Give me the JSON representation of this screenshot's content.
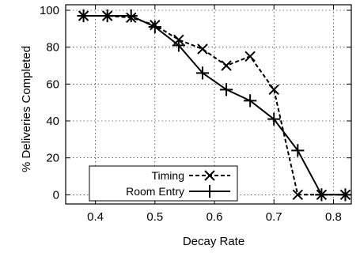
{
  "chart_data": {
    "type": "line",
    "title": "",
    "xlabel": "Decay Rate",
    "ylabel": "% Deliveries Completed",
    "xlim": [
      0.35,
      0.83
    ],
    "ylim": [
      -5,
      103
    ],
    "xticks": [
      0.4,
      0.5,
      0.6,
      0.7,
      0.8
    ],
    "xtick_labels": [
      "0.4",
      "0.5",
      "0.6",
      "0.7",
      "0.8"
    ],
    "yticks": [
      0,
      20,
      40,
      60,
      80,
      100
    ],
    "ytick_labels": [
      "0",
      "20",
      "40",
      "60",
      "80",
      "100"
    ],
    "grid": true,
    "legend_position": "bottom-left",
    "series": [
      {
        "name": "Timing",
        "marker": "x",
        "line_style": "dashed",
        "color": "#000000",
        "x": [
          0.38,
          0.42,
          0.46,
          0.5,
          0.54,
          0.58,
          0.62,
          0.66,
          0.7,
          0.74,
          0.78,
          0.82
        ],
        "y": [
          97,
          97,
          96,
          92,
          84,
          79,
          70,
          75,
          57,
          0,
          0,
          0
        ]
      },
      {
        "name": "Room Entry",
        "marker": "+",
        "line_style": "solid",
        "color": "#000000",
        "x": [
          0.38,
          0.42,
          0.46,
          0.5,
          0.54,
          0.58,
          0.62,
          0.66,
          0.7,
          0.74,
          0.78,
          0.82
        ],
        "y": [
          97,
          97,
          97,
          91,
          81,
          66,
          57,
          51,
          41,
          24,
          0,
          0
        ]
      }
    ]
  }
}
